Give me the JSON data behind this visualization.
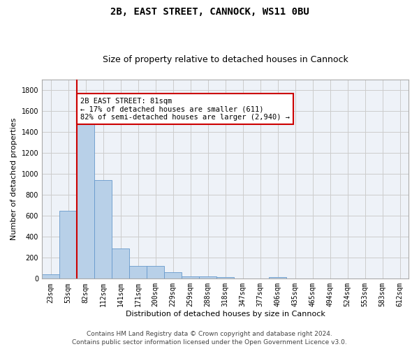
{
  "title": "2B, EAST STREET, CANNOCK, WS11 0BU",
  "subtitle": "Size of property relative to detached houses in Cannock",
  "xlabel": "Distribution of detached houses by size in Cannock",
  "ylabel": "Number of detached properties",
  "categories": [
    "23sqm",
    "53sqm",
    "82sqm",
    "112sqm",
    "141sqm",
    "171sqm",
    "200sqm",
    "229sqm",
    "259sqm",
    "288sqm",
    "318sqm",
    "347sqm",
    "377sqm",
    "406sqm",
    "435sqm",
    "465sqm",
    "494sqm",
    "524sqm",
    "553sqm",
    "583sqm",
    "612sqm"
  ],
  "values": [
    40,
    650,
    1475,
    940,
    290,
    125,
    125,
    65,
    25,
    25,
    15,
    0,
    0,
    15,
    0,
    0,
    0,
    0,
    0,
    0,
    0
  ],
  "bar_color": "#b8d0e8",
  "bar_edge_color": "#6699cc",
  "property_line_color": "#cc0000",
  "annotation_text": "2B EAST STREET: 81sqm\n← 17% of detached houses are smaller (611)\n82% of semi-detached houses are larger (2,940) →",
  "annotation_box_color": "#ffffff",
  "annotation_box_edge_color": "#cc0000",
  "ylim": [
    0,
    1900
  ],
  "yticks": [
    0,
    200,
    400,
    600,
    800,
    1000,
    1200,
    1400,
    1600,
    1800
  ],
  "footer_line1": "Contains HM Land Registry data © Crown copyright and database right 2024.",
  "footer_line2": "Contains public sector information licensed under the Open Government Licence v3.0.",
  "bg_color": "#ffffff",
  "plot_bg_color": "#eef2f8",
  "grid_color": "#cccccc",
  "title_fontsize": 10,
  "subtitle_fontsize": 9,
  "axis_label_fontsize": 8,
  "tick_fontsize": 7,
  "annotation_fontsize": 7.5,
  "footer_fontsize": 6.5
}
